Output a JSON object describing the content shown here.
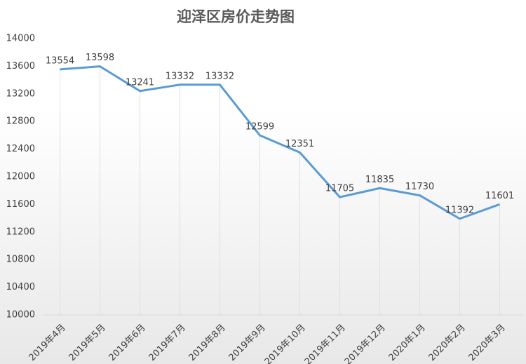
{
  "chart_data": {
    "type": "line",
    "title": "迎泽区房价走势图",
    "categories": [
      "2019年4月",
      "2019年5月",
      "2019年6月",
      "2019年7月",
      "2019年8月",
      "2019年9月",
      "2019年10月",
      "2019年11月",
      "2019年12月",
      "2020年1月",
      "2020年2月",
      "2020年3月"
    ],
    "values": [
      13554,
      13598,
      13241,
      13332,
      13332,
      12599,
      12351,
      11705,
      11835,
      11730,
      11392,
      11601
    ],
    "color": "#5b9bd5",
    "ylim": [
      10000,
      14000
    ],
    "yticks": [
      10000,
      10400,
      10800,
      11200,
      11600,
      12000,
      12400,
      12800,
      13200,
      13600,
      14000
    ],
    "grid": false
  }
}
